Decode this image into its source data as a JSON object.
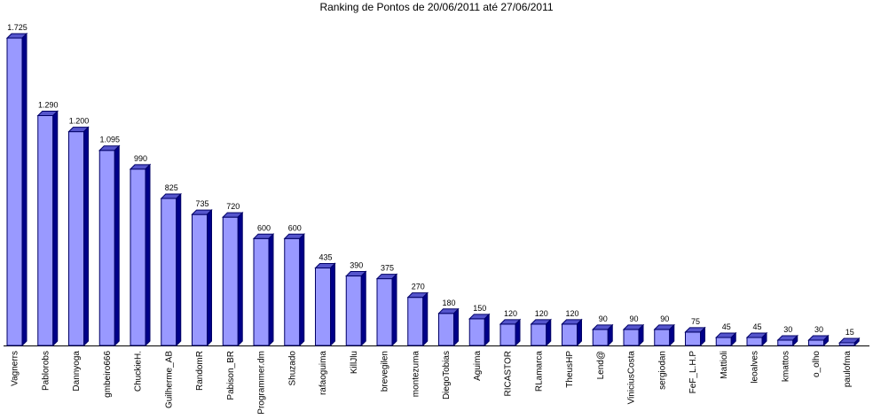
{
  "chart_data": {
    "type": "bar",
    "title": "Ranking de Pontos de 20/06/2011 até 27/06/2011",
    "categories": [
      "Vagnerrs",
      "Pablorobs",
      "Dannyoga",
      "gmbeiro666",
      "ChuckieH.",
      "Guilherme_AB",
      "RandomR",
      "Pabison_BR",
      "Programmer.dm",
      "Shuzado",
      "rafaoguima",
      "KillJlu",
      "brevegilen",
      "montezuma",
      "DiegoTobias",
      "Aguima",
      "RICASTOR",
      "RLamarca",
      "TheusHP",
      "Lend@",
      "ViniciusCosta",
      "sergiodan",
      "FeF_L.H.P",
      "Mattioli",
      "leoalves",
      "kmattos",
      "o_olho",
      "paulofma"
    ],
    "values": [
      1725,
      1290,
      1200,
      1095,
      990,
      825,
      735,
      720,
      600,
      600,
      435,
      390,
      375,
      270,
      180,
      150,
      120,
      120,
      120,
      90,
      90,
      90,
      75,
      45,
      45,
      30,
      30,
      15
    ],
    "value_labels": [
      "1.725",
      "1.290",
      "1.200",
      "1.095",
      "990",
      "825",
      "735",
      "720",
      "600",
      "600",
      "435",
      "390",
      "375",
      "270",
      "180",
      "150",
      "120",
      "120",
      "120",
      "90",
      "90",
      "90",
      "75",
      "45",
      "45",
      "30",
      "30",
      "15"
    ],
    "color": "#9999ff"
  }
}
